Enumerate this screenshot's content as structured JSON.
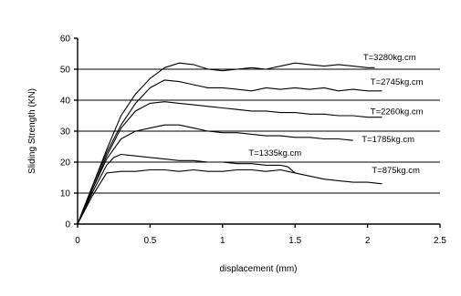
{
  "chart_data": {
    "type": "line",
    "title": "",
    "xlabel": "displacement (mm)",
    "ylabel": "Sliding Strength (KN)",
    "xlim": [
      0,
      2.5
    ],
    "ylim": [
      0,
      60
    ],
    "xticks": [
      "0",
      "0.5",
      "1",
      "1.5",
      "2",
      "2.5"
    ],
    "yticks": [
      "0",
      "10",
      "20",
      "30",
      "40",
      "50",
      "60"
    ],
    "grid": "horizontal gridlines at 10–50",
    "series": [
      {
        "name": "T=3280kg.cm",
        "x": [
          0,
          0.1,
          0.2,
          0.3,
          0.4,
          0.5,
          0.6,
          0.7,
          0.8,
          0.9,
          1.0,
          1.1,
          1.2,
          1.3,
          1.4,
          1.5,
          1.6,
          1.7,
          1.8,
          1.9,
          2.0,
          2.05
        ],
        "y": [
          0,
          12,
          24,
          35,
          42,
          47,
          50.5,
          52,
          51.5,
          50,
          49.5,
          50,
          50.5,
          50,
          51,
          52,
          51.5,
          51,
          51.5,
          51,
          50.5,
          50.5
        ]
      },
      {
        "name": "T=2745kg.cm",
        "x": [
          0,
          0.1,
          0.2,
          0.3,
          0.4,
          0.5,
          0.6,
          0.7,
          0.8,
          0.9,
          1.0,
          1.1,
          1.2,
          1.3,
          1.4,
          1.5,
          1.6,
          1.7,
          1.8,
          1.9,
          2.0,
          2.1
        ],
        "y": [
          0,
          12,
          23,
          32,
          39,
          44,
          46.5,
          46,
          45,
          44,
          44,
          43.5,
          43,
          44,
          43.5,
          44,
          43.5,
          44,
          43,
          43.5,
          43,
          43
        ]
      },
      {
        "name": "T=2260kg.cm",
        "x": [
          0,
          0.1,
          0.2,
          0.3,
          0.4,
          0.5,
          0.6,
          0.7,
          0.8,
          0.9,
          1.0,
          1.1,
          1.2,
          1.3,
          1.4,
          1.5,
          1.6,
          1.7,
          1.8,
          1.9,
          2.0,
          2.1
        ],
        "y": [
          0,
          11,
          22,
          31,
          36.5,
          39,
          39.5,
          39,
          38.5,
          38,
          37.5,
          37,
          36.5,
          36.5,
          36,
          36,
          35.5,
          35.5,
          35,
          35,
          34.5,
          34.5
        ]
      },
      {
        "name": "T=1785kg.cm",
        "x": [
          0,
          0.1,
          0.2,
          0.3,
          0.4,
          0.5,
          0.6,
          0.7,
          0.8,
          0.9,
          1.0,
          1.1,
          1.2,
          1.3,
          1.4,
          1.5,
          1.6,
          1.7,
          1.8,
          1.9
        ],
        "y": [
          0,
          11,
          21,
          27.5,
          30,
          31,
          32,
          32,
          31,
          30,
          29.5,
          29.5,
          29,
          28.5,
          28.5,
          28,
          28,
          27.5,
          27.5,
          27
        ]
      },
      {
        "name": "T=1335kg.cm",
        "x": [
          0,
          0.1,
          0.2,
          0.25,
          0.3,
          0.4,
          0.5,
          0.6,
          0.7,
          0.8,
          0.9,
          1.0,
          1.1,
          1.2,
          1.3,
          1.4,
          1.45,
          1.5
        ],
        "y": [
          0,
          10,
          19,
          21.5,
          22.5,
          22,
          21.5,
          21,
          20.5,
          20.5,
          20,
          20,
          19.5,
          19.5,
          19,
          19,
          18.5,
          16.5
        ]
      },
      {
        "name": "T=875kg.cm",
        "x": [
          0,
          0.1,
          0.2,
          0.3,
          0.4,
          0.5,
          0.6,
          0.7,
          0.8,
          0.9,
          1.0,
          1.1,
          1.2,
          1.3,
          1.4,
          1.5,
          1.6,
          1.7,
          1.8,
          1.9,
          2.0,
          2.1
        ],
        "y": [
          0,
          9,
          16.5,
          17,
          17,
          17.5,
          17.5,
          17,
          17.5,
          17,
          17,
          17.5,
          17.5,
          17,
          17.5,
          16.5,
          15.5,
          14.5,
          14,
          13.5,
          13.5,
          13
        ]
      }
    ],
    "annotations": [
      {
        "text": "T=3280kg.cm",
        "x": 1.97,
        "y": 53
      },
      {
        "text": "T=2745kg.cm",
        "x": 2.02,
        "y": 45
      },
      {
        "text": "T=2260kg.cm",
        "x": 2.02,
        "y": 35.5
      },
      {
        "text": "T=1785kg.cm",
        "x": 1.96,
        "y": 26.5
      },
      {
        "text": "T=1335kg.cm",
        "x": 1.18,
        "y": 22
      },
      {
        "text": "T=875kg.cm",
        "x": 2.03,
        "y": 16.5
      }
    ]
  }
}
